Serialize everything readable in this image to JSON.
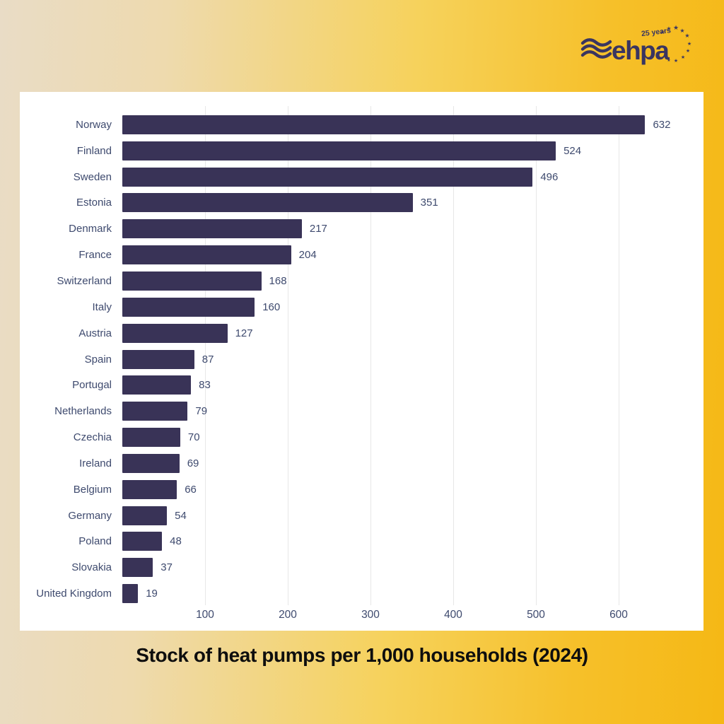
{
  "logo": {
    "brand": "ehpa",
    "tagline": "25 years"
  },
  "chart_data": {
    "type": "bar",
    "orientation": "horizontal",
    "title": "Stock of heat pumps per 1,000 households (2024)",
    "categories": [
      "Norway",
      "Finland",
      "Sweden",
      "Estonia",
      "Denmark",
      "France",
      "Switzerland",
      "Italy",
      "Austria",
      "Spain",
      "Portugal",
      "Netherlands",
      "Czechia",
      "Ireland",
      "Belgium",
      "Germany",
      "Poland",
      "Slovakia",
      "United Kingdom"
    ],
    "values": [
      632,
      524,
      496,
      351,
      217,
      204,
      168,
      160,
      127,
      87,
      83,
      79,
      70,
      69,
      66,
      54,
      48,
      37,
      19
    ],
    "x_ticks": [
      100,
      200,
      300,
      400,
      500,
      600
    ],
    "xlim": [
      0,
      660
    ],
    "grid": true,
    "legend": false,
    "value_labels": true,
    "bar_color": "#393357",
    "label_color": "#3e4a6e",
    "grid_color": "#e7e7e7"
  },
  "colors": {
    "bar": "#393357",
    "chart_text": "#3e4a6e",
    "logo_navy": "#3a3560",
    "card_background": "#ffffff",
    "title_text": "#0e0e0e",
    "background_left": "#e9dcc6",
    "background_right": "#f5b815"
  }
}
